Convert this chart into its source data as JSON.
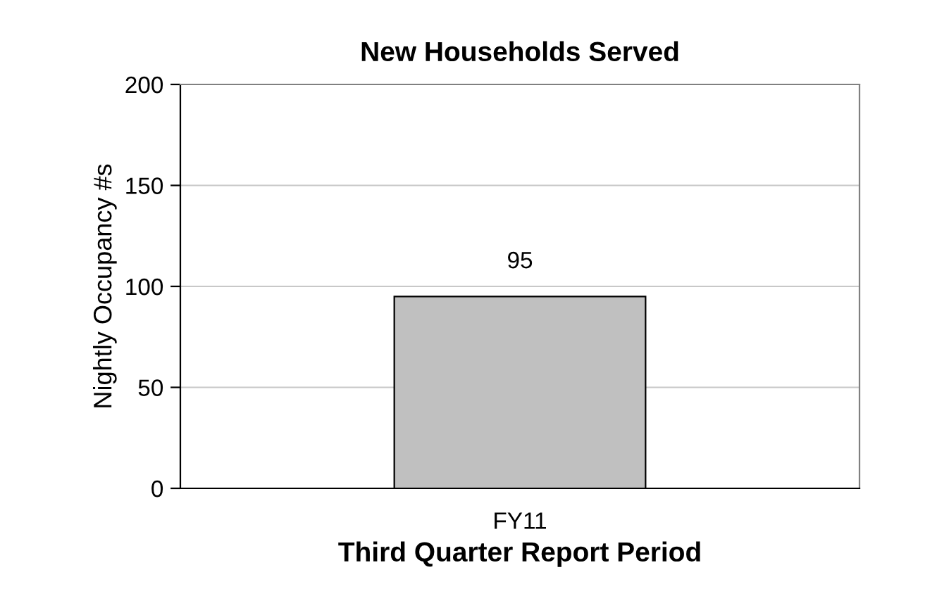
{
  "chart_data": {
    "type": "bar",
    "title": "New Households Served",
    "xlabel": "Third Quarter Report Period",
    "ylabel": "Nightly Occupancy #s",
    "categories": [
      "FY11"
    ],
    "values": [
      95
    ],
    "color": "#c0c0c0",
    "ylim": [
      0,
      200
    ],
    "yticks": [
      0,
      50,
      100,
      150,
      200
    ],
    "grid": "y",
    "data_labels": true
  }
}
